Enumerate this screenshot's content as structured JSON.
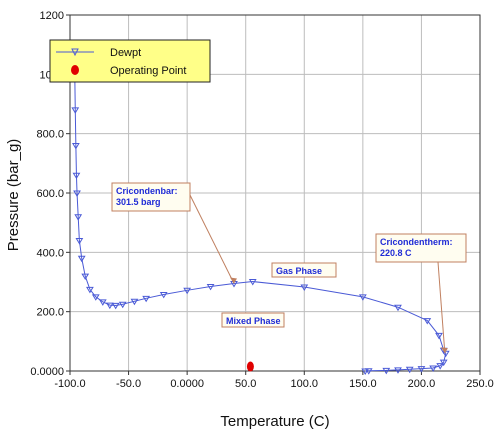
{
  "chart_data": {
    "type": "line",
    "xlabel": "Temperature (C)",
    "ylabel": "Pressure (bar_g)",
    "xlim": [
      -100,
      250
    ],
    "ylim": [
      0,
      1200
    ],
    "x_ticks": [
      -100,
      -50,
      0,
      50,
      100,
      150,
      200,
      250
    ],
    "y_ticks": [
      0,
      200,
      400,
      600,
      800,
      1000,
      1200
    ],
    "x_tick_labels": [
      "-100.0",
      "-50.0",
      "0.0000",
      "50.0",
      "100.0",
      "150.0",
      "200.0",
      "250.0"
    ],
    "y_tick_labels": [
      "0.0000",
      "200.0",
      "400.0",
      "600.0",
      "800.0",
      "1000",
      "1200"
    ],
    "grid": true,
    "legend_position": "top-left",
    "colors": {
      "dewpt": "#4a5ad6",
      "operating_point": "#e00000",
      "annotation_border": "#c08060",
      "annotation_fill": "#fffdf0",
      "annotation_text": "#1f2bd6",
      "legend_fill": "#ffff88"
    },
    "series": [
      {
        "name": "Dewpt",
        "marker": "triangle-down",
        "x": [
          -96,
          -95.5,
          -95,
          -94.5,
          -94,
          -93,
          -92,
          -90,
          -87,
          -83,
          -78,
          -72,
          -66,
          -61,
          -55,
          -45,
          -35,
          -20,
          0,
          20,
          40,
          56,
          100,
          150,
          180,
          205,
          215,
          219,
          220.8,
          219,
          216,
          210,
          200,
          190,
          180,
          170,
          155,
          152
        ],
        "y": [
          1020,
          880,
          760,
          660,
          600,
          520,
          440,
          380,
          320,
          275,
          250,
          233,
          222,
          221,
          225,
          235,
          245,
          258,
          272,
          285,
          295,
          301.5,
          283,
          250,
          215,
          170,
          120,
          70,
          60,
          30,
          18,
          10,
          8,
          6,
          4,
          2,
          1,
          0
        ]
      }
    ],
    "operating_point": {
      "name": "Operating Point",
      "x": 54,
      "y": 15
    },
    "annotations": [
      {
        "id": "cricondenbar",
        "lines": [
          "Cricondenbar:",
          "301.5 barg"
        ],
        "target": [
          40,
          295
        ]
      },
      {
        "id": "cricondentherm",
        "lines": [
          "Cricondentherm:",
          "220.8 C"
        ],
        "target": [
          220,
          60
        ]
      },
      {
        "id": "gas-phase",
        "lines": [
          "Gas Phase"
        ],
        "target": null
      },
      {
        "id": "mixed-phase",
        "lines": [
          "Mixed Phase"
        ],
        "target": null
      }
    ]
  }
}
